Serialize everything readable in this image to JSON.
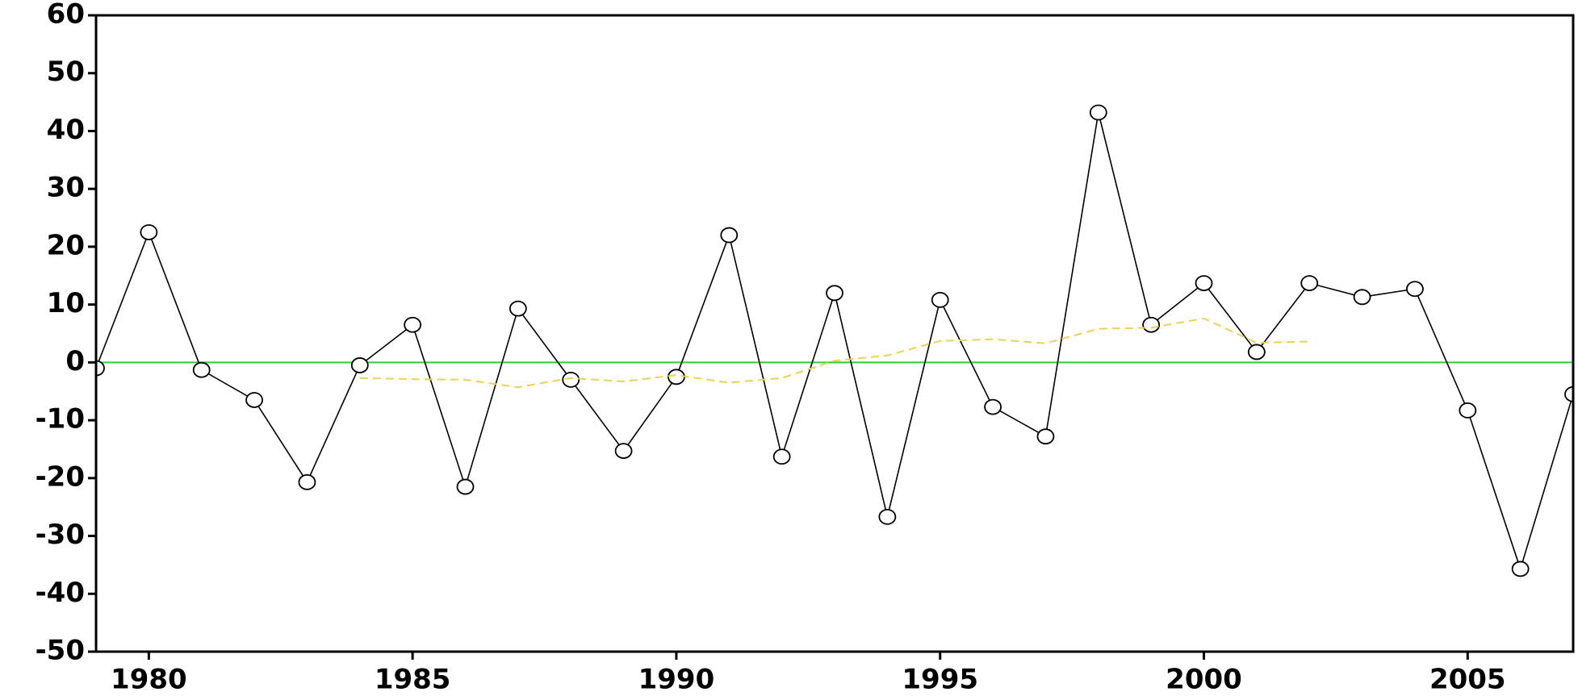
{
  "chart_data": {
    "type": "line",
    "x": [
      1979,
      1980,
      1981,
      1982,
      1983,
      1984,
      1985,
      1986,
      1987,
      1988,
      1989,
      1990,
      1991,
      1992,
      1993,
      1994,
      1995,
      1996,
      1997,
      1998,
      1999,
      2000,
      2001,
      2002,
      2003,
      2004,
      2005,
      2006,
      2007
    ],
    "series": [
      {
        "color": "#000000",
        "marker": "open-circle",
        "dashed": false,
        "values": [
          -1,
          22.5,
          -1.3,
          -6.5,
          -20.7,
          -0.5,
          6.5,
          -21.5,
          9.3,
          -3,
          -15.3,
          -2.5,
          22,
          -16.3,
          12,
          -26.7,
          10.8,
          -7.7,
          -12.8,
          43.2,
          6.5,
          13.7,
          1.8,
          13.7,
          11.3,
          12.7,
          -8.3,
          -35.7,
          -5.5
        ]
      },
      {
        "color": "#f0d050",
        "marker": null,
        "dashed": true,
        "values": [
          null,
          null,
          null,
          null,
          null,
          -2.7,
          -2.9,
          -3.0,
          -4.3,
          -2.7,
          -3.3,
          -2.2,
          -3.5,
          -2.7,
          0.3,
          1.2,
          3.7,
          4.0,
          3.3,
          5.8,
          6.0,
          7.6,
          3.4,
          3.6,
          null,
          null,
          null,
          null,
          null
        ]
      }
    ],
    "xlim": [
      1979,
      2007
    ],
    "xticks": [
      1980,
      1985,
      1990,
      1995,
      2000,
      2005
    ],
    "ylim": [
      -50,
      60
    ],
    "yticks": [
      -50,
      -40,
      -30,
      -20,
      -10,
      0,
      10,
      20,
      30,
      40,
      50,
      60
    ],
    "reference_line": {
      "value": 0,
      "color": "#33cc33"
    }
  }
}
